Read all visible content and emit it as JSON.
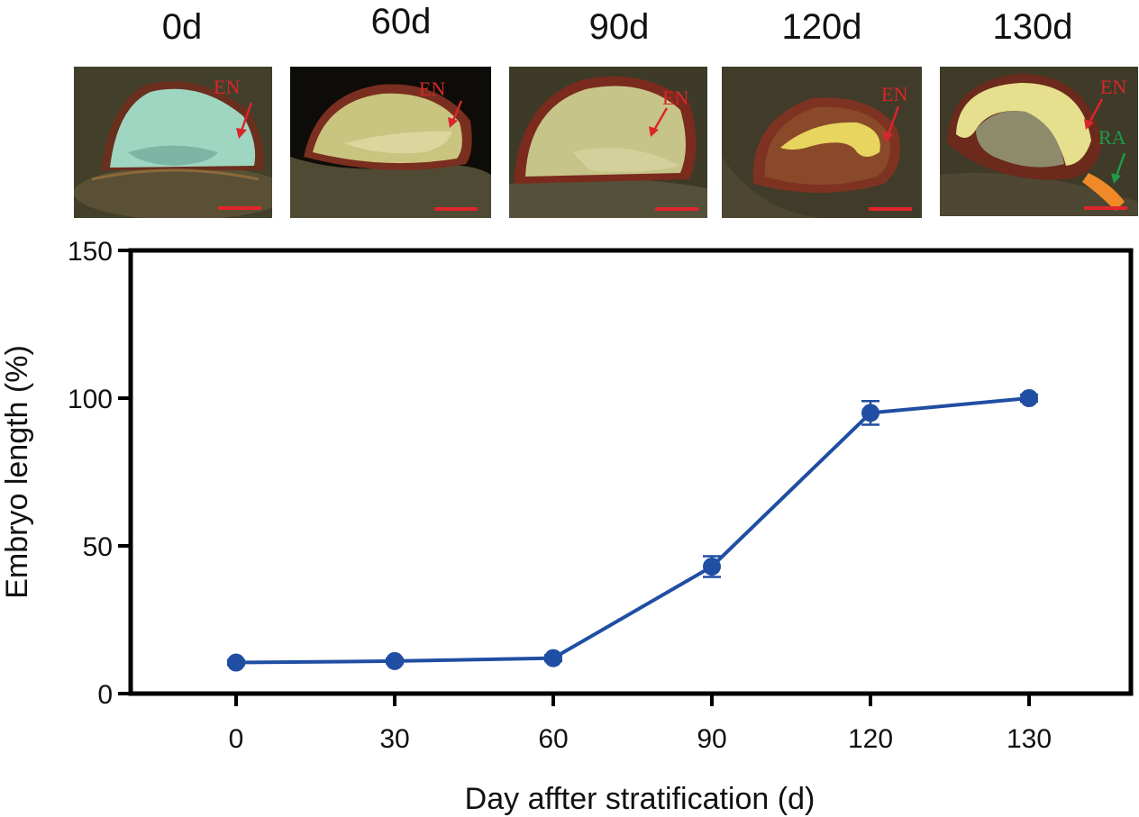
{
  "panels": [
    {
      "label": "0d",
      "annotations": [
        "EN"
      ]
    },
    {
      "label": "60d",
      "annotations": [
        "EN"
      ]
    },
    {
      "label": "90d",
      "annotations": [
        "EN"
      ]
    },
    {
      "label": "120d",
      "annotations": [
        "EN"
      ]
    },
    {
      "label": "130d",
      "annotations": [
        "EN",
        "RA"
      ]
    }
  ],
  "colors": {
    "series": "#1f4ea3",
    "annotation_en": "#d8262b",
    "annotation_ra": "#1f9a4a",
    "scale_bar": "#e0262b"
  },
  "chart_data": {
    "type": "line",
    "xlabel": "Day affter stratification (d)",
    "ylabel": "Embryo length (%)",
    "categories": [
      "0",
      "30",
      "60",
      "90",
      "120",
      "130"
    ],
    "ylim": [
      0,
      150
    ],
    "yticks": [
      "0",
      "50",
      "100",
      "150"
    ],
    "series": [
      {
        "values": [
          10.5,
          11,
          12,
          43,
          95,
          100
        ],
        "errors": [
          0.8,
          0.8,
          1,
          3.5,
          4,
          1.2
        ]
      }
    ],
    "grid": false,
    "legend": "none"
  }
}
